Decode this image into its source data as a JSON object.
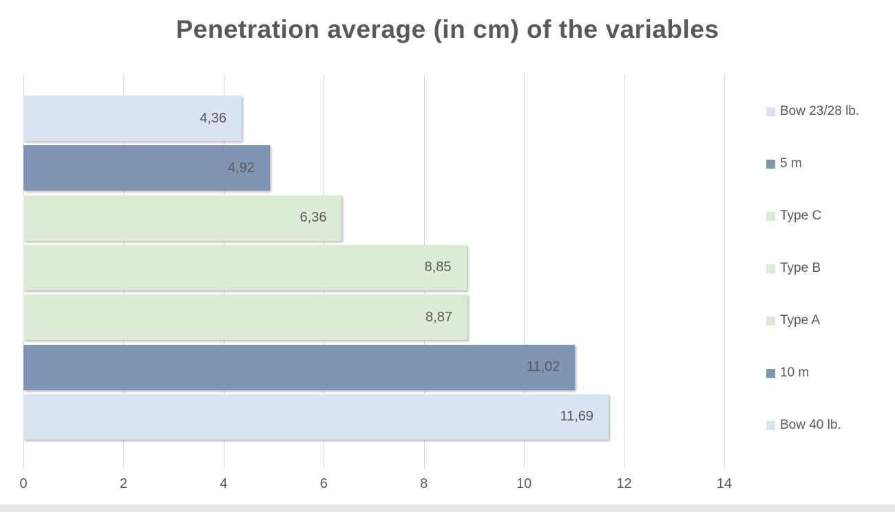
{
  "chart_data": {
    "type": "bar",
    "orientation": "horizontal",
    "title": "Penetration average (in cm) of the variables",
    "xlabel": "",
    "ylabel": "",
    "xlim": [
      0,
      14
    ],
    "x_ticks": [
      0,
      2,
      4,
      6,
      8,
      10,
      12,
      14
    ],
    "grid": true,
    "legend_position": "right",
    "rows": [
      {
        "name": "Bow 23/28 lb.",
        "value": 4.36,
        "label": "4,36",
        "color": "#dae3f1"
      },
      {
        "name": "5 m",
        "value": 4.92,
        "label": "4,92",
        "color": "#8095b3"
      },
      {
        "name": "Type C",
        "value": 6.36,
        "label": "6,36",
        "color": "#dcebd6"
      },
      {
        "name": "Type B",
        "value": 8.85,
        "label": "8,85",
        "color": "#dcebd6"
      },
      {
        "name": "Type A",
        "value": 8.87,
        "label": "8,87",
        "color": "#dcebd6"
      },
      {
        "name": "10 m",
        "value": 11.02,
        "label": "11,02",
        "color": "#8095b3"
      },
      {
        "name": "Bow 40 lb.",
        "value": 11.69,
        "label": "11,69",
        "color": "#dae3f1"
      }
    ],
    "legend": [
      "Bow 23/28 lb.",
      "5 m",
      "Type C",
      "Type B",
      "Type A",
      "10 m",
      "Bow 40 lb."
    ]
  },
  "colors": {
    "title": "#595959",
    "tick_label": "#595959",
    "data_label": "#595959",
    "gridline": "#d9d9d9",
    "bottom_strip": "#e9e9e9",
    "background": "#ffffff"
  }
}
